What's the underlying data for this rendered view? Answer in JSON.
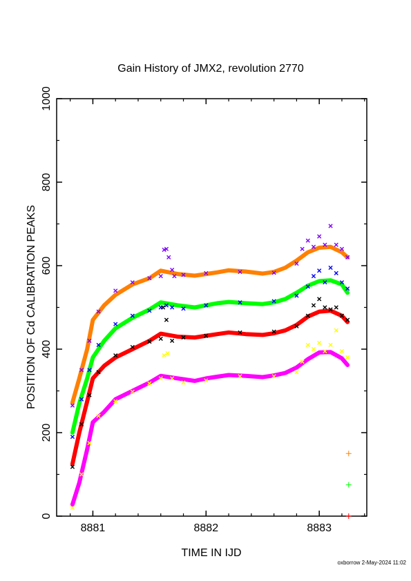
{
  "chart_data": {
    "type": "scatter",
    "title": "Gain History of JMX2, revolution 2770",
    "xlabel": "TIME IN IJD",
    "ylabel": "POSITION OF Cd CALIBRATION PEAKS",
    "footer": "oxborrow  2-May-2024 11:02",
    "xlim": [
      8880.68,
      8883.42
    ],
    "ylim": [
      0,
      1000
    ],
    "xticks": [
      "8881",
      "8882",
      "8883"
    ],
    "yticks": [
      "0",
      "200",
      "400",
      "600",
      "800",
      "1000"
    ],
    "grid": false,
    "series": [
      {
        "color": "#ff8000",
        "marker": "line",
        "x": [
          8880.82,
          8880.88,
          8880.95,
          8881.0,
          8881.1,
          8881.2,
          8881.35,
          8881.5,
          8881.6,
          8881.75,
          8881.9,
          8882.0,
          8882.1,
          8882.2,
          8882.35,
          8882.5,
          8882.6,
          8882.7,
          8882.8,
          8882.9,
          8883.0,
          8883.1,
          8883.2,
          8883.25
        ],
        "y": [
          272,
          330,
          400,
          470,
          505,
          530,
          555,
          570,
          588,
          580,
          576,
          580,
          584,
          589,
          586,
          581,
          585,
          595,
          612,
          632,
          643,
          645,
          632,
          620
        ]
      },
      {
        "color": "#8000ff",
        "marker": "x",
        "x": [
          8880.82,
          8880.9,
          8880.97,
          8881.05,
          8881.2,
          8881.35,
          8881.5,
          8881.6,
          8881.63,
          8881.65,
          8881.67,
          8881.7,
          8881.72,
          8881.8,
          8882.0,
          8882.3,
          8882.6,
          8882.8,
          8882.85,
          8882.9,
          8882.95,
          8883.0,
          8883.05,
          8883.1,
          8883.15,
          8883.2,
          8883.25
        ],
        "y": [
          265,
          350,
          420,
          490,
          540,
          560,
          570,
          575,
          638,
          640,
          620,
          590,
          575,
          578,
          582,
          585,
          583,
          605,
          640,
          660,
          645,
          670,
          650,
          695,
          650,
          640,
          620
        ]
      },
      {
        "color": "#00ff00",
        "marker": "line",
        "x": [
          8880.82,
          8880.88,
          8880.95,
          8881.0,
          8881.1,
          8881.2,
          8881.35,
          8881.5,
          8881.6,
          8881.75,
          8881.9,
          8882.0,
          8882.1,
          8882.2,
          8882.35,
          8882.5,
          8882.6,
          8882.7,
          8882.8,
          8882.9,
          8883.0,
          8883.1,
          8883.2,
          8883.25
        ],
        "y": [
          200,
          270,
          330,
          380,
          420,
          450,
          475,
          495,
          512,
          505,
          500,
          505,
          510,
          513,
          510,
          508,
          512,
          520,
          535,
          552,
          563,
          565,
          555,
          535
        ]
      },
      {
        "color": "#0000ff",
        "marker": "x",
        "x": [
          8880.82,
          8880.9,
          8880.97,
          8881.05,
          8881.2,
          8881.35,
          8881.5,
          8881.6,
          8881.65,
          8881.7,
          8881.8,
          8882.0,
          8882.3,
          8882.6,
          8882.8,
          8882.9,
          8882.95,
          8883.0,
          8883.05,
          8883.1,
          8883.15,
          8883.2,
          8883.25
        ],
        "y": [
          190,
          280,
          350,
          410,
          460,
          480,
          492,
          500,
          505,
          500,
          497,
          505,
          512,
          515,
          528,
          550,
          575,
          588,
          560,
          595,
          582,
          560,
          545
        ]
      },
      {
        "color": "#ff0000",
        "marker": "line",
        "x": [
          8880.82,
          8880.88,
          8880.95,
          8881.0,
          8881.1,
          8881.2,
          8881.35,
          8881.5,
          8881.6,
          8881.75,
          8881.9,
          8882.0,
          8882.1,
          8882.2,
          8882.35,
          8882.5,
          8882.6,
          8882.7,
          8882.8,
          8882.9,
          8883.0,
          8883.1,
          8883.2,
          8883.25
        ],
        "y": [
          125,
          200,
          275,
          330,
          360,
          380,
          400,
          420,
          437,
          430,
          428,
          432,
          436,
          440,
          436,
          434,
          438,
          445,
          458,
          478,
          490,
          492,
          480,
          465
        ]
      },
      {
        "color": "#000000",
        "marker": "x",
        "x": [
          8880.82,
          8880.9,
          8880.97,
          8881.05,
          8881.2,
          8881.35,
          8881.5,
          8881.6,
          8881.62,
          8881.65,
          8881.7,
          8881.8,
          8882.0,
          8882.3,
          8882.6,
          8882.8,
          8882.9,
          8882.95,
          8883.0,
          8883.05,
          8883.1,
          8883.15,
          8883.2,
          8883.25
        ],
        "y": [
          118,
          220,
          290,
          345,
          385,
          405,
          418,
          425,
          500,
          470,
          420,
          428,
          432,
          440,
          442,
          455,
          480,
          505,
          520,
          500,
          495,
          500,
          480,
          470
        ]
      },
      {
        "color": "#ff00ff",
        "marker": "line",
        "x": [
          8880.82,
          8880.88,
          8880.95,
          8881.0,
          8881.1,
          8881.2,
          8881.35,
          8881.5,
          8881.6,
          8881.75,
          8881.9,
          8882.0,
          8882.1,
          8882.2,
          8882.35,
          8882.5,
          8882.6,
          8882.7,
          8882.8,
          8882.9,
          8883.0,
          8883.1,
          8883.2,
          8883.25
        ],
        "y": [
          28,
          80,
          160,
          225,
          250,
          280,
          300,
          320,
          336,
          330,
          324,
          330,
          334,
          338,
          336,
          333,
          337,
          343,
          356,
          376,
          392,
          393,
          378,
          362
        ]
      },
      {
        "color": "#ffff00",
        "marker": "x",
        "x": [
          8880.82,
          8880.9,
          8880.97,
          8881.05,
          8881.2,
          8881.35,
          8881.5,
          8881.6,
          8881.63,
          8881.66,
          8881.7,
          8881.8,
          8882.0,
          8882.3,
          8882.6,
          8882.8,
          8882.85,
          8882.9,
          8882.95,
          8883.0,
          8883.05,
          8883.1,
          8883.15,
          8883.2,
          8883.25
        ],
        "y": [
          20,
          100,
          175,
          240,
          275,
          298,
          318,
          330,
          385,
          390,
          330,
          320,
          325,
          335,
          335,
          345,
          370,
          410,
          400,
          415,
          395,
          410,
          445,
          395,
          380
        ]
      },
      {
        "color": "#ff8000",
        "marker": "plus",
        "x": [
          8883.26
        ],
        "y": [
          150
        ]
      },
      {
        "color": "#00ff00",
        "marker": "plus",
        "x": [
          8883.26
        ],
        "y": [
          75
        ]
      },
      {
        "color": "#ff0000",
        "marker": "plus",
        "x": [
          8883.26
        ],
        "y": [
          0
        ]
      }
    ]
  }
}
